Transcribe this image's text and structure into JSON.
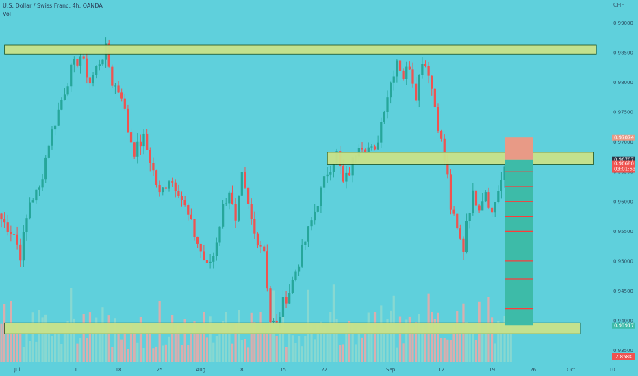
{
  "header": {
    "title": "U.S. Dollar / Swiss Franc, 4h, OANDA",
    "sub": "Vol"
  },
  "currency_label": "CHF",
  "colors": {
    "background": "#5fd0dc",
    "up": "#26a69a",
    "down": "#ef5350",
    "zone_fill": "#c9e28a",
    "zone_border": "#1c4a12",
    "target_fill": "#3dbba8",
    "stop_fill": "#e89a86",
    "target_line": "#ff3b3b"
  },
  "chart_data": {
    "type": "candlestick",
    "title": "U.S. Dollar / Swiss Franc, 4h, OANDA",
    "ylim": [
      0.933,
      0.992
    ],
    "x_range": [
      0,
      191
    ],
    "grid": false,
    "y_ticks": [
      {
        "v": 0.99,
        "label": "0.99000"
      },
      {
        "v": 0.985,
        "label": "0.98500"
      },
      {
        "v": 0.98,
        "label": "0.98000"
      },
      {
        "v": 0.975,
        "label": "0.97500"
      },
      {
        "v": 0.97,
        "label": "0.97000"
      },
      {
        "v": 0.965,
        "label": "0.96500"
      },
      {
        "v": 0.96,
        "label": "0.96000"
      },
      {
        "v": 0.955,
        "label": "0.95500"
      },
      {
        "v": 0.95,
        "label": "0.95000"
      },
      {
        "v": 0.945,
        "label": "0.94500"
      },
      {
        "v": 0.94,
        "label": "0.94000"
      },
      {
        "v": 0.935,
        "label": "0.93500"
      }
    ],
    "x_ticks": [
      {
        "i": 5,
        "label": "Jul"
      },
      {
        "i": 24,
        "label": "11"
      },
      {
        "i": 37,
        "label": "18"
      },
      {
        "i": 50,
        "label": "25"
      },
      {
        "i": 63,
        "label": "Aug"
      },
      {
        "i": 76,
        "label": "8"
      },
      {
        "i": 89,
        "label": "15"
      },
      {
        "i": 102,
        "label": "22"
      },
      {
        "i": 123,
        "label": "Sep"
      },
      {
        "i": 139,
        "label": "12"
      },
      {
        "i": 155,
        "label": "19"
      },
      {
        "i": 168,
        "label": "26"
      },
      {
        "i": 180,
        "label": "Oct"
      },
      {
        "i": 193,
        "label": "10"
      }
    ],
    "anchors": [
      [
        0,
        0.957
      ],
      [
        4,
        0.9545
      ],
      [
        6,
        0.951
      ],
      [
        9,
        0.96
      ],
      [
        12,
        0.962
      ],
      [
        15,
        0.97
      ],
      [
        19,
        0.977
      ],
      [
        22,
        0.982
      ],
      [
        25,
        0.9845
      ],
      [
        28,
        0.98
      ],
      [
        31,
        0.9835
      ],
      [
        33,
        0.9855
      ],
      [
        35,
        0.98
      ],
      [
        38,
        0.978
      ],
      [
        40,
        0.972
      ],
      [
        42,
        0.9685
      ],
      [
        45,
        0.9705
      ],
      [
        47,
        0.967
      ],
      [
        50,
        0.961
      ],
      [
        53,
        0.964
      ],
      [
        56,
        0.962
      ],
      [
        59,
        0.9575
      ],
      [
        62,
        0.953
      ],
      [
        65,
        0.949
      ],
      [
        67,
        0.951
      ],
      [
        70,
        0.959
      ],
      [
        72,
        0.962
      ],
      [
        74,
        0.956
      ],
      [
        76,
        0.964
      ],
      [
        78,
        0.959
      ],
      [
        80,
        0.9545
      ],
      [
        83,
        0.952
      ],
      [
        85,
        0.94
      ],
      [
        87,
        0.9392
      ],
      [
        89,
        0.943
      ],
      [
        91,
        0.945
      ],
      [
        94,
        0.95
      ],
      [
        97,
        0.955
      ],
      [
        100,
        0.96
      ],
      [
        103,
        0.965
      ],
      [
        106,
        0.968
      ],
      [
        108,
        0.963
      ],
      [
        110,
        0.965
      ],
      [
        113,
        0.97
      ],
      [
        116,
        0.969
      ],
      [
        118,
        0.968
      ],
      [
        121,
        0.976
      ],
      [
        123,
        0.98
      ],
      [
        125,
        0.984
      ],
      [
        127,
        0.981
      ],
      [
        129,
        0.983
      ],
      [
        131,
        0.978
      ],
      [
        133,
        0.984
      ],
      [
        135,
        0.982
      ],
      [
        137,
        0.976
      ],
      [
        139,
        0.97
      ],
      [
        141,
        0.964
      ],
      [
        142,
        0.959
      ],
      [
        144,
        0.955
      ],
      [
        146,
        0.952
      ],
      [
        147,
        0.957
      ],
      [
        149,
        0.961
      ],
      [
        151,
        0.9595
      ],
      [
        153,
        0.962
      ],
      [
        155,
        0.958
      ],
      [
        157,
        0.962
      ],
      [
        159,
        0.965
      ],
      [
        161,
        0.9668
      ]
    ],
    "zones": [
      {
        "name": "resistance",
        "top": 0.9858,
        "bottom": 0.9852,
        "x0": 1,
        "x1": 188
      },
      {
        "name": "mid",
        "top": 0.9678,
        "bottom": 0.9667,
        "x0": 103,
        "x1": 187
      },
      {
        "name": "support",
        "top": 0.93917,
        "bottom": 0.93825,
        "x0": 1,
        "x1": 183
      }
    ],
    "position": {
      "x0": 159,
      "x1": 168,
      "entry": 0.967,
      "stop": 0.97074,
      "target": 0.93917,
      "levels": [
        0.965,
        0.9625,
        0.96,
        0.9575,
        0.955,
        0.95,
        0.947,
        0.942
      ]
    },
    "price_labels": [
      {
        "value": 0.97074,
        "text": "0.97074",
        "color": "#e89a86"
      },
      {
        "value": 0.96707,
        "text": "0.96707",
        "color": "#2a3445"
      },
      {
        "value": 0.9668,
        "text": "0.96680",
        "sub": "03:01:53",
        "color": "#ef5350"
      },
      {
        "value": 0.93917,
        "text": "0.93917",
        "color": "#3dbba8"
      }
    ],
    "volume_label": {
      "text": "2.858K",
      "color": "#ef5350"
    }
  }
}
